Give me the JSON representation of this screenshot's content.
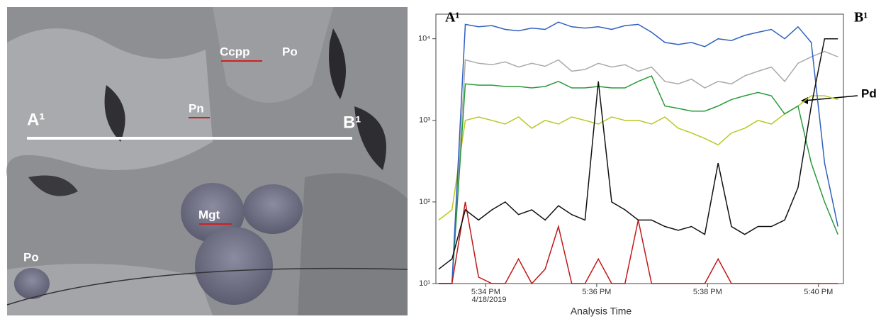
{
  "photo": {
    "labels": [
      "Ccpp",
      "Po",
      "Pn",
      "A¹",
      "B¹",
      "Mgt",
      "Po"
    ]
  },
  "chart_data": {
    "type": "line",
    "log_scale": true,
    "x_label": "Analysis Time",
    "date_label": "4/18/2019",
    "annotations": [
      "A¹",
      "B¹",
      "Pd"
    ],
    "x": [
      33.15,
      33.39,
      33.63,
      33.87,
      34.11,
      34.35,
      34.59,
      34.83,
      35.07,
      35.31,
      35.55,
      35.79,
      36.03,
      36.27,
      36.51,
      36.75,
      36.99,
      37.23,
      37.47,
      37.71,
      37.95,
      38.19,
      38.43,
      38.67,
      38.91,
      39.15,
      39.39,
      39.63,
      39.87,
      40.11,
      40.35
    ],
    "xlim": [
      33.1,
      40.45
    ],
    "xticks": [
      {
        "value": 34,
        "label": "5:34 PM"
      },
      {
        "value": 36,
        "label": "5:36 PM"
      },
      {
        "value": 38,
        "label": "5:38 PM"
      },
      {
        "value": 40,
        "label": "5:40 PM"
      }
    ],
    "ylim": [
      10,
      20000
    ],
    "yticks": [
      {
        "value": 10,
        "label": "10¹"
      },
      {
        "value": 100,
        "label": "10²"
      },
      {
        "value": 1000,
        "label": "10³"
      },
      {
        "value": 10000,
        "label": "10⁴"
      }
    ],
    "series": [
      {
        "color": "#b8c820",
        "values": [
          60,
          80,
          1000,
          1100,
          1000,
          900,
          1100,
          800,
          1000,
          900,
          1100,
          1000,
          900,
          1100,
          1000,
          1000,
          900,
          1100,
          800,
          700,
          600,
          500,
          700,
          800,
          1000,
          900,
          1200,
          1500,
          2000,
          2000,
          1800
        ]
      },
      {
        "color": "#aaaaaa",
        "values": [
          10,
          10,
          5500,
          5000,
          4800,
          5200,
          4500,
          5000,
          4600,
          5500,
          4000,
          4200,
          5000,
          4500,
          4800,
          4000,
          4500,
          3000,
          2800,
          3200,
          2500,
          3000,
          2800,
          3500,
          4000,
          4500,
          3000,
          5000,
          6000,
          7000,
          6000
        ]
      },
      {
        "color": "#2a9a3a",
        "values": [
          10,
          10,
          2800,
          2700,
          2700,
          2600,
          2600,
          2500,
          2600,
          3000,
          2500,
          2500,
          2600,
          2500,
          2500,
          3000,
          3500,
          1500,
          1400,
          1300,
          1300,
          1500,
          1800,
          2000,
          2200,
          2000,
          1200,
          1500,
          300,
          100,
          40
        ]
      },
      {
        "color": "#3060c0",
        "values": [
          10,
          10,
          15000,
          14000,
          14500,
          13000,
          12500,
          13500,
          13000,
          16000,
          14000,
          13500,
          14000,
          13000,
          14500,
          15000,
          12000,
          9000,
          8500,
          9000,
          8000,
          10000,
          9500,
          11000,
          12000,
          13000,
          10000,
          14000,
          9000,
          300,
          50
        ]
      },
      {
        "color": "#c01818",
        "values": [
          10,
          10,
          100,
          12,
          10,
          10,
          20,
          10,
          15,
          50,
          10,
          10,
          20,
          10,
          10,
          60,
          10,
          10,
          10,
          10,
          10,
          20,
          10,
          10,
          10,
          10,
          10,
          10,
          10,
          10,
          10
        ]
      },
      {
        "color": "#111111",
        "values": [
          15,
          20,
          80,
          60,
          80,
          100,
          70,
          80,
          60,
          90,
          70,
          60,
          3000,
          100,
          80,
          60,
          60,
          50,
          45,
          50,
          40,
          300,
          50,
          40,
          50,
          50,
          60,
          150,
          1500,
          10000,
          10000
        ]
      }
    ]
  }
}
